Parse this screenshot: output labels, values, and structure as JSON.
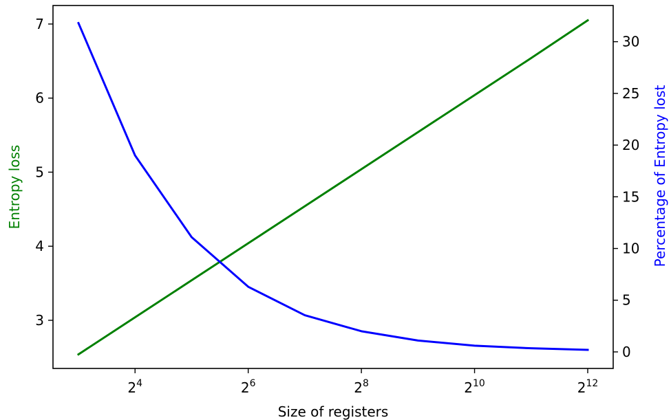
{
  "chart_data": {
    "type": "line",
    "title": "",
    "xlabel": "Size of registers",
    "x_scale": "log2",
    "x": [
      8,
      16,
      32,
      64,
      128,
      256,
      512,
      1024,
      2048,
      4096
    ],
    "x_ticks": [
      {
        "value": 16,
        "base": "2",
        "exp": "4"
      },
      {
        "value": 64,
        "base": "2",
        "exp": "6"
      },
      {
        "value": 256,
        "base": "2",
        "exp": "8"
      },
      {
        "value": 1024,
        "base": "2",
        "exp": "10"
      },
      {
        "value": 4096,
        "base": "2",
        "exp": "12"
      }
    ],
    "y_left": {
      "label": "Entropy loss",
      "color": "#008000",
      "lim": [
        2.35,
        7.25
      ],
      "ticks": [
        "3",
        "4",
        "5",
        "6",
        "7"
      ]
    },
    "y_right": {
      "label": "Percentage of Entropy lost",
      "color": "#0000ff",
      "lim": [
        -1.6,
        33.5
      ],
      "ticks": [
        "0",
        "5",
        "10",
        "15",
        "20",
        "25",
        "30"
      ]
    },
    "series": [
      {
        "axis": "left",
        "color": "#008000",
        "values": [
          2.54,
          3.04,
          3.54,
          4.04,
          4.54,
          5.04,
          5.54,
          6.04,
          6.54,
          7.05
        ]
      },
      {
        "axis": "right",
        "color": "#0000ff",
        "values": [
          31.8,
          19.0,
          11.1,
          6.3,
          3.55,
          2.0,
          1.1,
          0.6,
          0.35,
          0.2
        ]
      }
    ],
    "grid": false,
    "legend": "none"
  }
}
